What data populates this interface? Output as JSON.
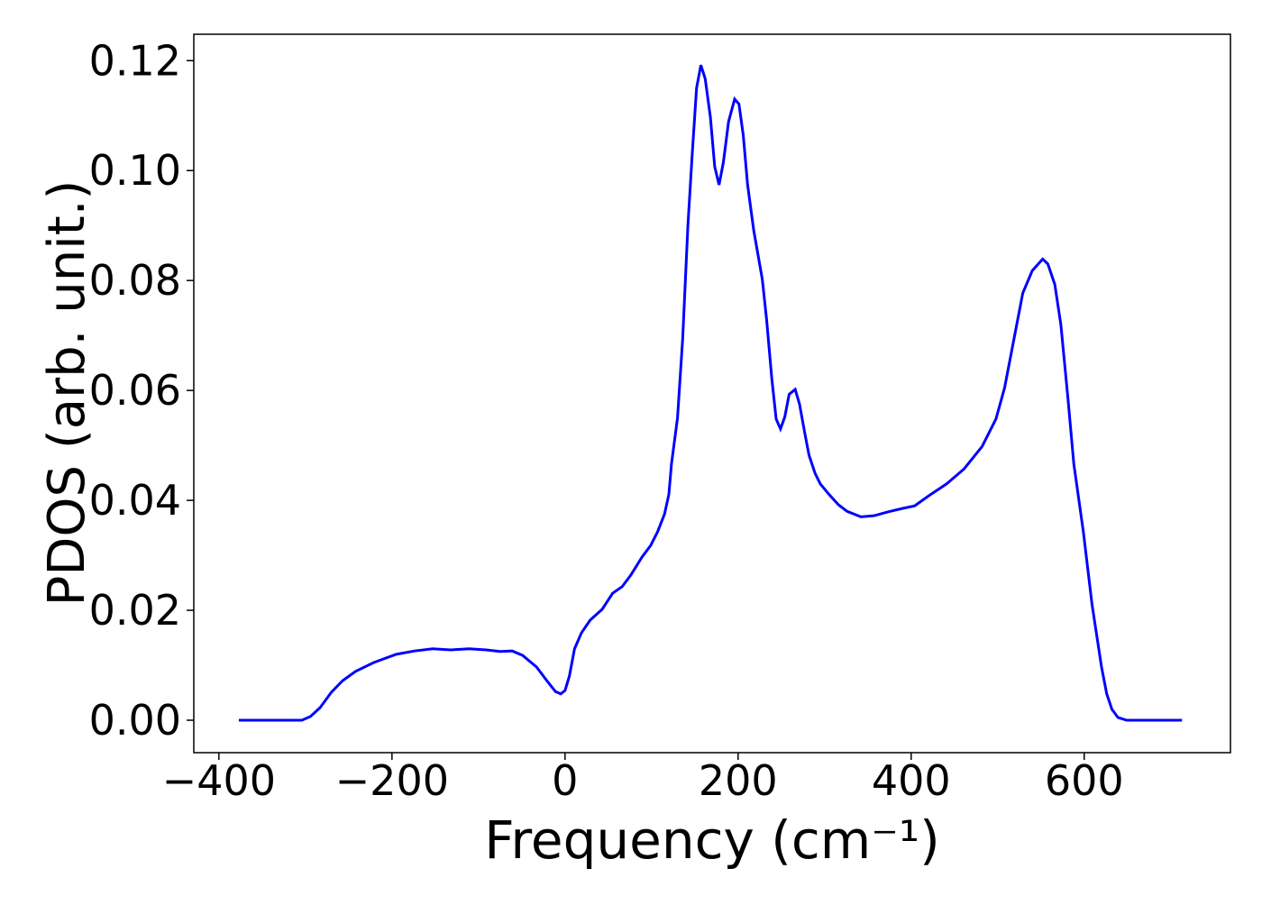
{
  "chart_data": {
    "type": "line",
    "x_label": "Frequency (cm⁻¹)",
    "y_label": "PDOS (arb. unit.)",
    "xlim": [
      -429,
      769
    ],
    "ylim": [
      -0.0059,
      0.1248
    ],
    "xticks": [
      {
        "value": -400,
        "label": "−400"
      },
      {
        "value": -200,
        "label": "−200"
      },
      0,
      200,
      400,
      600
    ],
    "yticks": [
      {
        "value": 0,
        "label": "0.00"
      },
      {
        "value": 0.02,
        "label": "0.02"
      },
      {
        "value": 0.04,
        "label": "0.04"
      },
      {
        "value": 0.06,
        "label": "0.06"
      },
      {
        "value": 0.08,
        "label": "0.08"
      },
      {
        "value": 0.1,
        "label": "0.10"
      },
      {
        "value": 0.12,
        "label": "0.12"
      }
    ],
    "grid": false,
    "x": [
      -377,
      -304,
      -294,
      -283,
      -270,
      -257,
      -242,
      -221,
      -195,
      -174,
      -153,
      -132,
      -111,
      -91,
      -75,
      -61,
      -49,
      -33,
      -21,
      -11,
      -5,
      0,
      5,
      11,
      19,
      29,
      43,
      55,
      66,
      76,
      89,
      99,
      107,
      115,
      120,
      123,
      130,
      136,
      142,
      147,
      152,
      157,
      162,
      168,
      173,
      178,
      183,
      189,
      196,
      201,
      206,
      211,
      218,
      228,
      233,
      239,
      244,
      249,
      254,
      259,
      266,
      271,
      277,
      282,
      289,
      295,
      305,
      316,
      326,
      342,
      357,
      373,
      389,
      404,
      420,
      441,
      461,
      482,
      498,
      508,
      519,
      529,
      540,
      552,
      558,
      566,
      573,
      581,
      588,
      599,
      609,
      620,
      626,
      632,
      639,
      649,
      713
    ],
    "series": [
      {
        "color": "#0000ff",
        "values": [
          0,
          0,
          0.0007,
          0.0023,
          0.0051,
          0.0072,
          0.0089,
          0.0105,
          0.012,
          0.0126,
          0.013,
          0.0128,
          0.013,
          0.0128,
          0.0125,
          0.0126,
          0.0118,
          0.0097,
          0.0072,
          0.0052,
          0.0048,
          0.0054,
          0.008,
          0.013,
          0.0159,
          0.0182,
          0.0202,
          0.0231,
          0.0243,
          0.0264,
          0.0297,
          0.0318,
          0.0343,
          0.0375,
          0.0411,
          0.0466,
          0.055,
          0.0695,
          0.09,
          0.103,
          0.115,
          0.1192,
          0.1167,
          0.1097,
          0.1007,
          0.0974,
          0.1015,
          0.1089,
          0.113,
          0.1121,
          0.1064,
          0.0974,
          0.0892,
          0.0802,
          0.0728,
          0.0621,
          0.0548,
          0.053,
          0.0552,
          0.0593,
          0.0602,
          0.0575,
          0.0523,
          0.0482,
          0.0449,
          0.043,
          0.0411,
          0.0392,
          0.038,
          0.037,
          0.0372,
          0.0379,
          0.0385,
          0.039,
          0.0408,
          0.043,
          0.0457,
          0.0498,
          0.0548,
          0.0605,
          0.0695,
          0.0777,
          0.0818,
          0.0839,
          0.083,
          0.0793,
          0.072,
          0.0589,
          0.0466,
          0.0343,
          0.0211,
          0.0097,
          0.0048,
          0.002,
          0.0005,
          0,
          0
        ]
      }
    ]
  }
}
